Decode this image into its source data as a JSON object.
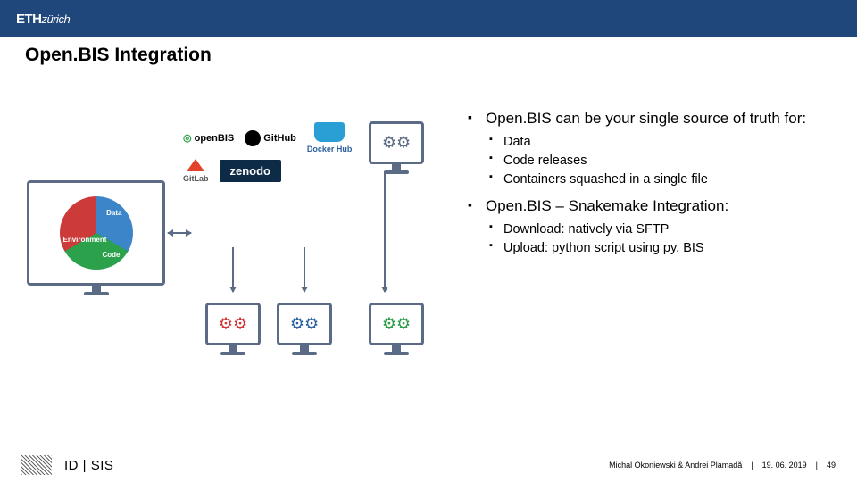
{
  "header": {
    "institution": "ETH",
    "institution_suffix": "zürich"
  },
  "title": "Open.BIS Integration",
  "colors": {
    "band": "#20477c",
    "text": "#000000",
    "monitor_stroke": "#5b6a85",
    "pie_data": "#3b85c8",
    "pie_code": "#2aa14a",
    "pie_env": "#cc3a3a",
    "zenodo_bg": "#0d2a47"
  },
  "diagram": {
    "pie_labels": {
      "data": "Data",
      "code": "Code",
      "env": "Environment"
    },
    "logos": {
      "openbis": "openBIS",
      "github": "GitHub",
      "dockerhub": "Docker Hub",
      "gitlab": "GitLab",
      "zenodo": "zenodo"
    }
  },
  "bullets": {
    "b1": "Open.BIS can be your single source of truth for:",
    "b1_sub": {
      "s1": "Data",
      "s2": "Code releases",
      "s3": "Containers squashed in a single file"
    },
    "b2": "Open.BIS – Snakemake Integration:",
    "b2_sub": {
      "s1": "Download: natively via SFTP",
      "s2": "Upload: python script using py. BIS"
    }
  },
  "footer": {
    "dept": "ID | SIS",
    "authors": "Michal Okoniewski & Andrei Plamadă",
    "date": "19. 06. 2019",
    "page": "49"
  }
}
